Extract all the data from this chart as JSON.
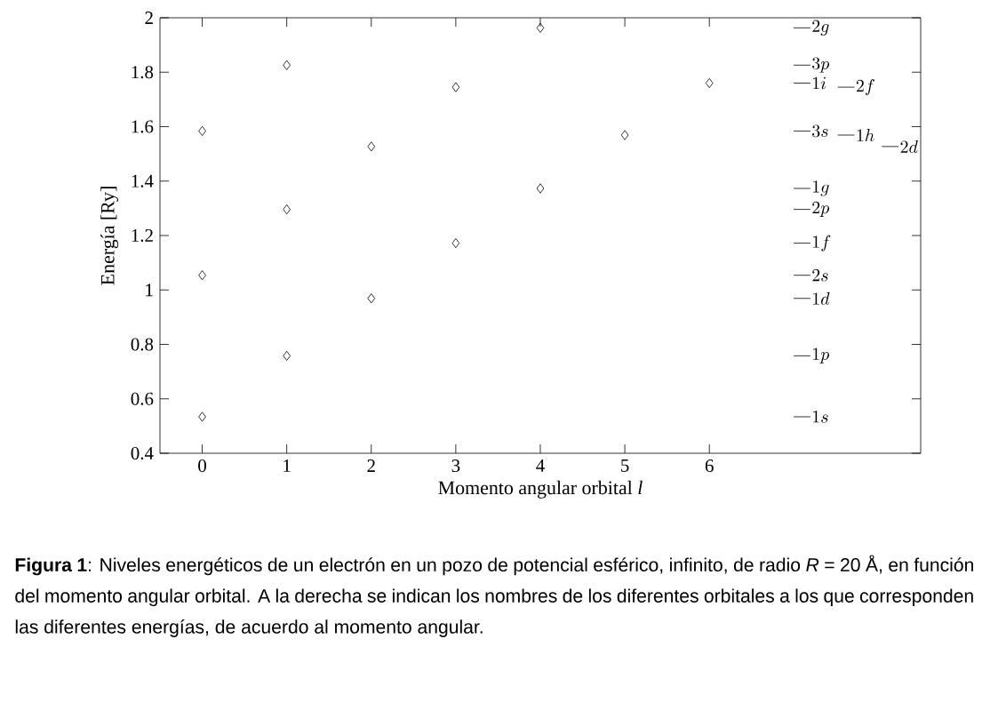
{
  "chart_data": {
    "type": "scatter",
    "xlabel": "Momento angular orbital *l*",
    "ylabel": "Energía [Ry]",
    "x": [
      0,
      0,
      0,
      1,
      1,
      1,
      2,
      2,
      3,
      3,
      4,
      4,
      5,
      6
    ],
    "values": [
      1.584,
      1.054,
      0.534,
      1.826,
      1.296,
      0.758,
      1.527,
      0.969,
      1.745,
      1.172,
      1.963,
      1.373,
      1.569,
      1.76
    ],
    "color": "#000000",
    "marker": "diamond",
    "xlim": [
      -0.5,
      8.5
    ],
    "ylim": [
      0.4,
      2
    ],
    "xticks": [
      0,
      1,
      2,
      3,
      4,
      5,
      6
    ],
    "yticks": [
      0.4,
      0.6,
      0.8,
      1,
      1.2,
      1.4,
      1.6,
      1.8,
      2
    ],
    "ref_lines": [
      {
        "axis": "y",
        "value": 1.963,
        "label": "2g"
      },
      {
        "axis": "y",
        "value": 1.826,
        "label": "3p"
      },
      {
        "axis": "y",
        "value": 1.76,
        "label": "1i"
      },
      {
        "axis": "y",
        "value": 1.745,
        "label": "2f"
      },
      {
        "axis": "y",
        "value": 1.584,
        "label": "3s"
      },
      {
        "axis": "y",
        "value": 1.569,
        "label": "1h"
      },
      {
        "axis": "y",
        "value": 1.527,
        "label": "2d"
      },
      {
        "axis": "y",
        "value": 1.373,
        "label": "1g"
      },
      {
        "axis": "y",
        "value": 1.296,
        "label": "2p"
      },
      {
        "axis": "y",
        "value": 1.172,
        "label": "1f"
      },
      {
        "axis": "y",
        "value": 1.054,
        "label": "2s"
      },
      {
        "axis": "y",
        "value": 0.969,
        "label": "1d"
      },
      {
        "axis": "y",
        "value": 0.758,
        "label": "1p"
      },
      {
        "axis": "y",
        "value": 0.534,
        "label": "1s"
      }
    ],
    "annotations": [
      "**Figura 1**: Niveles energéticos de un electrón en un pozo de potencial esférico, infinito, de radio *R* = 20 Å, en función del momento angular orbital.  A la derecha se indican los nombres de los diferentes orbitales a los que corresponden las diferentes energías, de acuerdo al momento angular."
    ]
  }
}
